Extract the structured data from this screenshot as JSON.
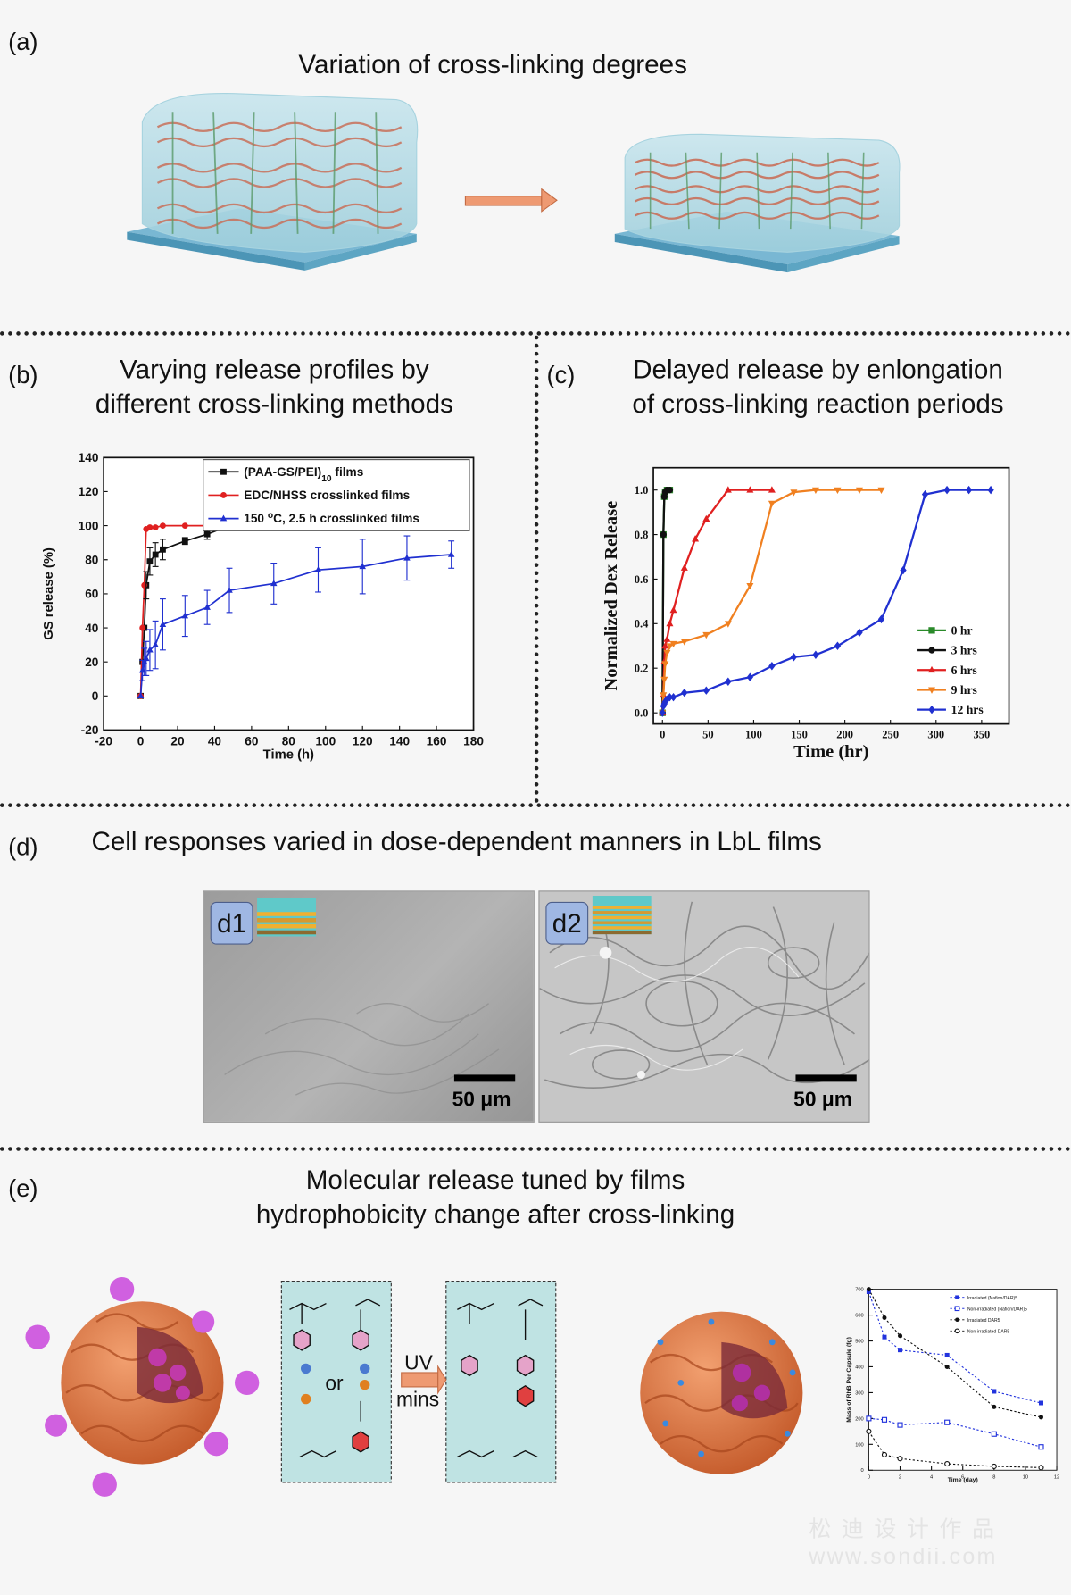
{
  "panel_a": {
    "label": "(a)",
    "title": "Variation of cross-linking degrees"
  },
  "panel_b": {
    "label": "(b)",
    "title_line1": "Varying release profiles by",
    "title_line2": "different cross-linking methods",
    "chart_data": {
      "type": "line",
      "xlabel": "Time (h)",
      "ylabel": "GS release (%)",
      "xlim": [
        -20,
        180
      ],
      "ylim": [
        -20,
        140
      ],
      "xticks": [
        "-20",
        "0",
        "20",
        "40",
        "60",
        "80",
        "100",
        "120",
        "140",
        "160",
        "180"
      ],
      "yticks": [
        "-20",
        "0",
        "20",
        "40",
        "60",
        "80",
        "100",
        "120",
        "140"
      ],
      "legend_position": "top-right",
      "series": [
        {
          "name": "(PAA-GS/PEI)10 films",
          "legend_main": "(PAA-GS/PEI)",
          "legend_sub": "10",
          "legend_tail": " films",
          "color": "#111111",
          "marker": "square",
          "x": [
            0,
            1,
            2,
            3,
            5,
            8,
            12,
            24,
            36,
            48,
            72,
            96,
            120,
            144,
            168
          ],
          "y": [
            0,
            20,
            40,
            65,
            79,
            83,
            86,
            91,
            95,
            100,
            100,
            100,
            100,
            100,
            100
          ]
        },
        {
          "name": "EDC/NHSS crosslinked films",
          "color": "#e02020",
          "marker": "circle",
          "x": [
            0,
            1,
            2,
            3,
            5,
            8,
            12,
            24,
            48,
            72,
            96,
            120,
            144,
            168
          ],
          "y": [
            0,
            40,
            65,
            98,
            99,
            99,
            100,
            100,
            100,
            100,
            100,
            100,
            100,
            100
          ]
        },
        {
          "name": "150 °C, 2.5 h crosslinked films",
          "legend_main": "150 ",
          "legend_sup": "o",
          "legend_tail": "C, 2.5 h crosslinked films",
          "color": "#2030d0",
          "marker": "triangle",
          "x": [
            0,
            1,
            2,
            3,
            5,
            8,
            12,
            24,
            36,
            48,
            72,
            96,
            120,
            144,
            168
          ],
          "y": [
            0,
            15,
            20,
            22,
            27,
            30,
            42,
            47,
            52,
            62,
            66,
            74,
            76,
            81,
            83
          ]
        }
      ]
    }
  },
  "panel_c": {
    "label": "(c)",
    "title_line1": "Delayed release by enlongation",
    "title_line2": "of cross-linking reaction periods",
    "chart_data": {
      "type": "line",
      "xlabel": "Time (hr)",
      "ylabel": "Normalized Dex Release",
      "xlim": [
        -10,
        380
      ],
      "ylim": [
        -0.05,
        1.1
      ],
      "xticks": [
        "0",
        "50",
        "100",
        "150",
        "200",
        "250",
        "300",
        "350"
      ],
      "yticks": [
        "0.0",
        "0.2",
        "0.4",
        "0.6",
        "0.8",
        "1.0"
      ],
      "legend_position": "bottom-right",
      "series": [
        {
          "name": "0 hr",
          "color": "#2a8a2a",
          "marker": "square",
          "x": [
            0,
            1,
            2,
            3,
            5,
            8
          ],
          "y": [
            0,
            0.8,
            0.97,
            0.99,
            1.0,
            1.0
          ]
        },
        {
          "name": "3 hrs",
          "color": "#111111",
          "marker": "circle",
          "x": [
            0,
            1,
            2,
            3,
            5,
            8
          ],
          "y": [
            0,
            0.8,
            0.97,
            0.99,
            1.0,
            1.0
          ]
        },
        {
          "name": "6 hrs",
          "color": "#e02020",
          "marker": "triangle",
          "x": [
            0,
            1,
            2,
            3,
            5,
            8,
            12,
            24,
            36,
            48,
            72,
            96,
            120
          ],
          "y": [
            0,
            0.08,
            0.23,
            0.3,
            0.33,
            0.4,
            0.46,
            0.65,
            0.78,
            0.87,
            1.0,
            1.0,
            1.0
          ]
        },
        {
          "name": "9 hrs",
          "color": "#f08020",
          "marker": "triangle-down",
          "x": [
            0,
            1,
            2,
            3,
            5,
            8,
            12,
            24,
            48,
            72,
            96,
            120,
            144,
            168,
            192,
            216,
            240
          ],
          "y": [
            0,
            0.08,
            0.15,
            0.22,
            0.27,
            0.3,
            0.31,
            0.32,
            0.35,
            0.4,
            0.57,
            0.94,
            0.99,
            1.0,
            1.0,
            1.0,
            1.0
          ]
        },
        {
          "name": "12 hrs",
          "color": "#2030d0",
          "marker": "diamond",
          "x": [
            0,
            1,
            2,
            3,
            5,
            8,
            12,
            24,
            48,
            72,
            96,
            120,
            144,
            168,
            192,
            216,
            240,
            264,
            288,
            312,
            336,
            360
          ],
          "y": [
            0,
            0.03,
            0.04,
            0.05,
            0.06,
            0.07,
            0.07,
            0.09,
            0.1,
            0.14,
            0.16,
            0.21,
            0.25,
            0.26,
            0.3,
            0.36,
            0.42,
            0.64,
            0.98,
            1.0,
            1.0,
            1.0
          ]
        }
      ]
    }
  },
  "panel_d": {
    "label": "(d)",
    "title": "Cell responses varied in dose-dependent manners in LbL films",
    "d1_label": "d1",
    "d2_label": "d2",
    "scale_text": "50 μm"
  },
  "panel_e": {
    "label": "(e)",
    "title_line1": "Molecular release tuned by films",
    "title_line2": "hydrophobicity change after cross-linking",
    "or_text": "or",
    "uv_text": "UV",
    "mins_text": "mins",
    "chart_data": {
      "type": "line",
      "xlabel": "Time (day)",
      "ylabel": "Mass of RhB Per Capsule (fg)",
      "xlim": [
        0,
        12
      ],
      "ylim": [
        0,
        700
      ],
      "xticks": [
        "0",
        "2",
        "4",
        "6",
        "8",
        "10",
        "12"
      ],
      "yticks": [
        "0",
        "100",
        "200",
        "300",
        "400",
        "500",
        "600",
        "700"
      ],
      "legend_position": "top-right",
      "series": [
        {
          "name": "Irradiated (Nafion/DAR)5",
          "color": "#2233dd",
          "marker": "square",
          "x": [
            0,
            1,
            2,
            5,
            8,
            11
          ],
          "y": [
            690,
            515,
            465,
            445,
            305,
            260
          ]
        },
        {
          "name": "Non-irradiated (Nafion/DAR)5",
          "color": "#2233dd",
          "marker": "open-square",
          "x": [
            0,
            1,
            2,
            5,
            8,
            11
          ],
          "y": [
            200,
            195,
            175,
            185,
            140,
            90
          ]
        },
        {
          "name": "Irradiated DAR5",
          "color": "#111111",
          "marker": "circle",
          "x": [
            0,
            1,
            2,
            5,
            8,
            11
          ],
          "y": [
            700,
            590,
            520,
            400,
            245,
            205
          ]
        },
        {
          "name": "Non-irradiated DAR5",
          "color": "#111111",
          "marker": "open-circle",
          "x": [
            0,
            1,
            2,
            5,
            8,
            11
          ],
          "y": [
            150,
            60,
            45,
            25,
            15,
            10
          ]
        }
      ]
    }
  },
  "watermark": {
    "line1": "松 迪 设 计 作 品",
    "line2": "www.sondii.com"
  }
}
